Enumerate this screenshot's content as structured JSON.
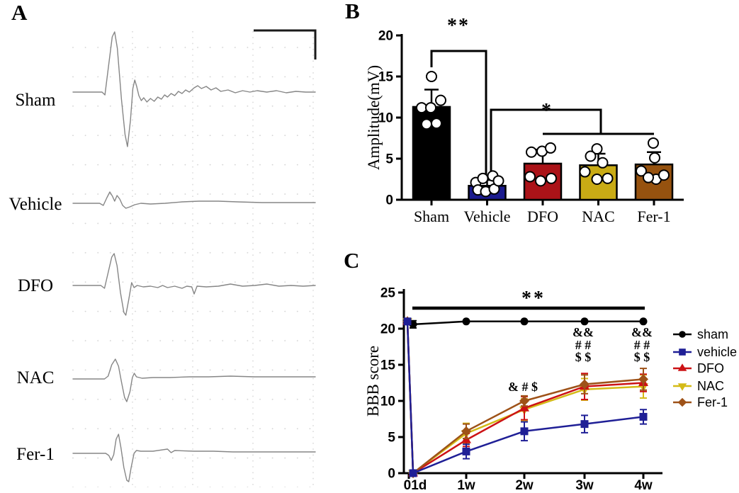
{
  "figure_bg": "#ffffff",
  "panels": {
    "a": {
      "letter": "A"
    },
    "b": {
      "letter": "B"
    },
    "c": {
      "letter": "C"
    }
  },
  "panel_a": {
    "type": "electrophysiology-traces",
    "trace_color": "#868686",
    "grid_dot_color": "#d2d2d2",
    "grid_line_color": "#c6c6c6",
    "scale_bar": "top-right L-shape",
    "traces": [
      {
        "label": "Sham",
        "points": [
          [
            0,
            0
          ],
          [
            0.12,
            0
          ],
          [
            0.132,
            4
          ],
          [
            0.148,
            -40
          ],
          [
            0.162,
            -78
          ],
          [
            0.172,
            -85
          ],
          [
            0.183,
            -62
          ],
          [
            0.2,
            10
          ],
          [
            0.215,
            60
          ],
          [
            0.225,
            77
          ],
          [
            0.237,
            40
          ],
          [
            0.247,
            -5
          ],
          [
            0.255,
            -17
          ],
          [
            0.263,
            -8
          ],
          [
            0.272,
            5
          ],
          [
            0.282,
            12
          ],
          [
            0.292,
            8
          ],
          [
            0.305,
            14
          ],
          [
            0.32,
            9
          ],
          [
            0.335,
            13
          ],
          [
            0.35,
            7
          ],
          [
            0.365,
            10
          ],
          [
            0.378,
            4
          ],
          [
            0.39,
            7
          ],
          [
            0.405,
            2
          ],
          [
            0.42,
            5
          ],
          [
            0.435,
            -1
          ],
          [
            0.45,
            2
          ],
          [
            0.465,
            -3
          ],
          [
            0.48,
            0
          ],
          [
            0.5,
            -6
          ],
          [
            0.515,
            -9
          ],
          [
            0.53,
            -5
          ],
          [
            0.55,
            -8
          ],
          [
            0.57,
            -3
          ],
          [
            0.59,
            -6
          ],
          [
            0.61,
            -1
          ],
          [
            0.64,
            -3
          ],
          [
            0.67,
            1
          ],
          [
            0.7,
            -2
          ],
          [
            0.73,
            0
          ],
          [
            0.76,
            -2
          ],
          [
            0.8,
            0
          ],
          [
            0.84,
            -2
          ],
          [
            0.88,
            1
          ],
          [
            0.92,
            -1
          ],
          [
            0.96,
            0
          ],
          [
            1,
            0
          ]
        ]
      },
      {
        "label": "Vehicle",
        "points": [
          [
            0,
            0
          ],
          [
            0.11,
            0
          ],
          [
            0.125,
            3
          ],
          [
            0.14,
            -8
          ],
          [
            0.152,
            -16
          ],
          [
            0.163,
            -10
          ],
          [
            0.172,
            -3
          ],
          [
            0.182,
            -11
          ],
          [
            0.193,
            -6
          ],
          [
            0.205,
            3
          ],
          [
            0.218,
            7
          ],
          [
            0.235,
            5
          ],
          [
            0.255,
            2
          ],
          [
            0.28,
            0
          ],
          [
            0.32,
            1
          ],
          [
            0.38,
            0
          ],
          [
            0.45,
            -2
          ],
          [
            0.52,
            -3
          ],
          [
            0.6,
            -3
          ],
          [
            0.68,
            -2
          ],
          [
            0.78,
            -1
          ],
          [
            0.88,
            -1
          ],
          [
            1,
            -1
          ]
        ]
      },
      {
        "label": "DFO",
        "points": [
          [
            0,
            0
          ],
          [
            0.115,
            0
          ],
          [
            0.13,
            4
          ],
          [
            0.145,
            -18
          ],
          [
            0.16,
            -40
          ],
          [
            0.17,
            -45
          ],
          [
            0.182,
            -28
          ],
          [
            0.196,
            10
          ],
          [
            0.21,
            38
          ],
          [
            0.218,
            42
          ],
          [
            0.23,
            20
          ],
          [
            0.242,
            -4
          ],
          [
            0.252,
            3
          ],
          [
            0.265,
            0
          ],
          [
            0.29,
            2
          ],
          [
            0.32,
            1
          ],
          [
            0.35,
            3
          ],
          [
            0.37,
            0
          ],
          [
            0.39,
            3
          ],
          [
            0.42,
            1
          ],
          [
            0.45,
            4
          ],
          [
            0.47,
            1
          ],
          [
            0.49,
            2
          ],
          [
            0.5,
            12
          ],
          [
            0.512,
            1
          ],
          [
            0.55,
            2
          ],
          [
            0.6,
            1
          ],
          [
            0.65,
            -2
          ],
          [
            0.7,
            1
          ],
          [
            0.75,
            0
          ],
          [
            0.8,
            -2
          ],
          [
            0.85,
            1
          ],
          [
            0.9,
            0
          ],
          [
            0.95,
            1
          ],
          [
            1,
            0
          ]
        ]
      },
      {
        "label": "NAC",
        "points": [
          [
            0,
            0
          ],
          [
            0.13,
            0
          ],
          [
            0.145,
            -4
          ],
          [
            0.16,
            -20
          ],
          [
            0.175,
            -28
          ],
          [
            0.188,
            -18
          ],
          [
            0.2,
            4
          ],
          [
            0.213,
            26
          ],
          [
            0.222,
            32
          ],
          [
            0.235,
            18
          ],
          [
            0.245,
            -2
          ],
          [
            0.253,
            -8
          ],
          [
            0.262,
            -3
          ],
          [
            0.285,
            -1
          ],
          [
            0.33,
            -2
          ],
          [
            0.4,
            -2
          ],
          [
            0.48,
            -3
          ],
          [
            0.56,
            -3
          ],
          [
            0.65,
            -4
          ],
          [
            0.75,
            -3
          ],
          [
            0.85,
            -3
          ],
          [
            1,
            -3
          ]
        ]
      },
      {
        "label": "Fer-1",
        "points": [
          [
            0,
            0
          ],
          [
            0.135,
            0
          ],
          [
            0.148,
            3
          ],
          [
            0.158,
            10
          ],
          [
            0.168,
            2
          ],
          [
            0.178,
            -20
          ],
          [
            0.188,
            -27
          ],
          [
            0.198,
            -8
          ],
          [
            0.21,
            20
          ],
          [
            0.222,
            38
          ],
          [
            0.23,
            40
          ],
          [
            0.24,
            20
          ],
          [
            0.252,
            0
          ],
          [
            0.262,
            -4
          ],
          [
            0.28,
            -3
          ],
          [
            0.33,
            -3
          ],
          [
            0.39,
            -6
          ],
          [
            0.405,
            -1
          ],
          [
            0.42,
            -4
          ],
          [
            0.5,
            -3
          ],
          [
            0.58,
            -3
          ],
          [
            0.66,
            -2
          ],
          [
            0.75,
            -2
          ],
          [
            0.85,
            -2
          ],
          [
            1,
            -2
          ]
        ]
      }
    ]
  },
  "chart_data": [
    {
      "id": "B",
      "type": "bar",
      "title": "",
      "xlabel": "",
      "ylabel": "Amplitude(mV)",
      "ylim": [
        0,
        20
      ],
      "yticks": [
        0,
        5,
        10,
        15,
        20
      ],
      "categories": [
        "Sham",
        "Vehicle",
        "DFO",
        "NAC",
        "Fer-1"
      ],
      "values": [
        11.3,
        1.7,
        4.4,
        4.2,
        4.3
      ],
      "errors": [
        2.1,
        0.7,
        1.7,
        1.4,
        1.5
      ],
      "bar_colors": [
        "#000000",
        "#1b1b8e",
        "#ab1318",
        "#c9ab15",
        "#96520f"
      ],
      "scatter_points": [
        [
          [
            -14,
            11.2
          ],
          [
            0,
            15.0
          ],
          [
            13,
            12.1
          ],
          [
            -1,
            11.2
          ],
          [
            -7,
            9.2
          ],
          [
            7,
            9.3
          ]
        ],
        [
          [
            -16,
            2.1
          ],
          [
            -6,
            2.6
          ],
          [
            8,
            2.9
          ],
          [
            -13,
            1.2
          ],
          [
            -2,
            1.0
          ],
          [
            10,
            1.3
          ],
          [
            16,
            2.3
          ]
        ],
        [
          [
            -16,
            5.8
          ],
          [
            -1,
            5.9
          ],
          [
            11,
            6.3
          ],
          [
            -18,
            2.8
          ],
          [
            -3,
            2.3
          ],
          [
            12,
            2.6
          ]
        ],
        [
          [
            -2,
            6.2
          ],
          [
            -11,
            5.3
          ],
          [
            6,
            4.5
          ],
          [
            -19,
            3.4
          ],
          [
            -2,
            2.5
          ],
          [
            13,
            2.6
          ]
        ],
        [
          [
            -1,
            6.9
          ],
          [
            1,
            5.1
          ],
          [
            -18,
            3.5
          ],
          [
            3,
            2.5
          ],
          [
            14,
            3.0
          ],
          [
            -8,
            2.7
          ]
        ]
      ],
      "significance": [
        {
          "label": "**",
          "compare": [
            "Sham",
            "Vehicle"
          ]
        },
        {
          "label": "*",
          "compare": [
            "Vehicle",
            "DFO, NAC, Fer-1"
          ]
        }
      ]
    },
    {
      "id": "C",
      "type": "line",
      "title": "",
      "xlabel": "",
      "ylabel": "BBB score",
      "ylim": [
        0,
        25
      ],
      "yticks": [
        0,
        5,
        10,
        15,
        20,
        25
      ],
      "x": [
        "0",
        "1d",
        "1w",
        "2w",
        "3w",
        "4w"
      ],
      "x_tick_labels": [
        "01d",
        "1w",
        "2w",
        "3w",
        "4w"
      ],
      "series": [
        {
          "name": "sham",
          "color": "#000000",
          "marker": "circle",
          "values": [
            21,
            20.6,
            21,
            21,
            21,
            21
          ],
          "errors": [
            0,
            0.5,
            0,
            0,
            0,
            0
          ]
        },
        {
          "name": "vehicle",
          "color": "#1f1f96",
          "marker": "square",
          "values": [
            21,
            0,
            3.0,
            5.8,
            6.8,
            7.8
          ],
          "errors": [
            0,
            0,
            1.0,
            1.3,
            1.2,
            1.0
          ]
        },
        {
          "name": "DFO",
          "color": "#cc1215",
          "marker": "triangle-up",
          "values": [
            21,
            0,
            4.6,
            9.0,
            12.0,
            12.5
          ],
          "errors": [
            0,
            0,
            0.9,
            1.6,
            1.8,
            1.2
          ]
        },
        {
          "name": "NAC",
          "color": "#d4ba16",
          "marker": "triangle-down",
          "values": [
            21,
            0,
            5.5,
            8.8,
            11.6,
            12.0
          ],
          "errors": [
            0,
            0,
            1.4,
            1.5,
            1.5,
            1.6
          ]
        },
        {
          "name": "Fer-1",
          "color": "#9e5218",
          "marker": "diamond",
          "values": [
            21,
            0,
            5.8,
            10.0,
            12.3,
            13.0
          ],
          "errors": [
            0,
            0,
            1.0,
            0.7,
            1.3,
            1.5
          ]
        }
      ],
      "draw_order": [
        "NAC",
        "DFO",
        "Fer-1",
        "sham",
        "vehicle"
      ],
      "significance": {
        "label": "**",
        "span": [
          "1d",
          "4w"
        ]
      },
      "annotations": [
        {
          "anchor": "2w",
          "lines": [
            "& # $"
          ]
        },
        {
          "anchor": "3w",
          "lines": [
            "&&",
            "# #",
            "$ $"
          ]
        },
        {
          "anchor": "4w",
          "lines": [
            "&&",
            "# #",
            "$ $"
          ]
        }
      ],
      "legend": [
        "sham",
        "vehicle",
        "DFO",
        "NAC",
        "Fer-1"
      ],
      "legend_position": "right"
    }
  ]
}
